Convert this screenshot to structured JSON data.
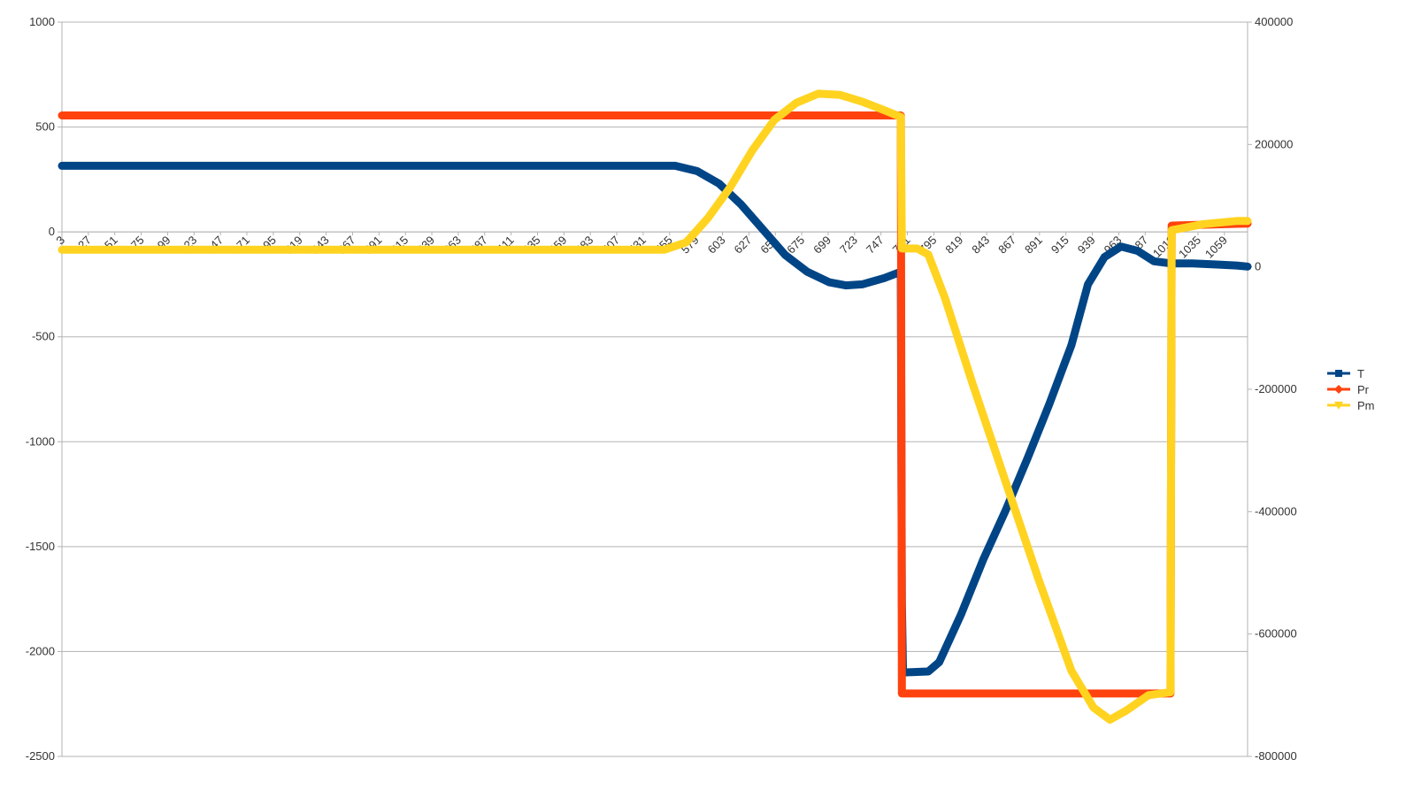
{
  "chart_data": {
    "type": "line",
    "title": "",
    "xlabel": "",
    "ylabel": "",
    "x_tick_labels": [
      "3",
      "27",
      "51",
      "75",
      "99",
      "123",
      "147",
      "171",
      "195",
      "219",
      "243",
      "267",
      "291",
      "315",
      "339",
      "363",
      "387",
      "411",
      "435",
      "459",
      "483",
      "507",
      "531",
      "555",
      "579",
      "603",
      "627",
      "651",
      "675",
      "699",
      "723",
      "747",
      "771",
      "795",
      "819",
      "843",
      "867",
      "891",
      "915",
      "939",
      "963",
      "987",
      "1011",
      "1035",
      "1059"
    ],
    "x_range": [
      3,
      1080
    ],
    "y_left": {
      "range": [
        -2500,
        1000
      ],
      "ticks": [
        1000,
        500,
        0,
        -500,
        -1000,
        -1500,
        -2000,
        -2500
      ],
      "tick_labels": [
        "1000",
        "500",
        "0",
        "-500",
        "-1000",
        "-1500",
        "-2000",
        "-2500"
      ]
    },
    "y_right": {
      "range": [
        -800000,
        400000
      ],
      "ticks": [
        400000,
        200000,
        0,
        -200000,
        -400000,
        -600000,
        -800000
      ],
      "tick_labels": [
        "400000",
        "200000",
        "0",
        "-200000",
        "-400000",
        "-600000",
        "-800000"
      ]
    },
    "grid": true,
    "legend_position": "right",
    "series": [
      {
        "name": "T",
        "axis": "left",
        "color": "#004586",
        "marker": "square",
        "points": [
          [
            3,
            315
          ],
          [
            550,
            315
          ],
          [
            560,
            315
          ],
          [
            580,
            290
          ],
          [
            600,
            230
          ],
          [
            620,
            130
          ],
          [
            640,
            10
          ],
          [
            660,
            -110
          ],
          [
            680,
            -190
          ],
          [
            700,
            -240
          ],
          [
            715,
            -255
          ],
          [
            730,
            -250
          ],
          [
            750,
            -220
          ],
          [
            765,
            -190
          ],
          [
            766,
            -1770
          ],
          [
            767,
            -2100
          ],
          [
            790,
            -2095
          ],
          [
            800,
            -2050
          ],
          [
            820,
            -1820
          ],
          [
            840,
            -1560
          ],
          [
            860,
            -1330
          ],
          [
            880,
            -1080
          ],
          [
            900,
            -820
          ],
          [
            920,
            -540
          ],
          [
            935,
            -250
          ],
          [
            950,
            -120
          ],
          [
            965,
            -70
          ],
          [
            980,
            -90
          ],
          [
            995,
            -140
          ],
          [
            1010,
            -150
          ],
          [
            1030,
            -150
          ],
          [
            1050,
            -155
          ],
          [
            1070,
            -160
          ],
          [
            1080,
            -165
          ]
        ]
      },
      {
        "name": "Pr",
        "axis": "left",
        "color": "#ff420e",
        "marker": "diamond",
        "points": [
          [
            3,
            555
          ],
          [
            765,
            555
          ],
          [
            766,
            -2200
          ],
          [
            1010,
            -2200
          ],
          [
            1011,
            30
          ],
          [
            1080,
            40
          ]
        ]
      },
      {
        "name": "Pm",
        "axis": "right",
        "color": "#ffd320",
        "marker": "triangle-down",
        "points": [
          [
            3,
            28000
          ],
          [
            550,
            28000
          ],
          [
            570,
            40000
          ],
          [
            590,
            80000
          ],
          [
            610,
            130000
          ],
          [
            630,
            190000
          ],
          [
            650,
            240000
          ],
          [
            670,
            268000
          ],
          [
            690,
            283000
          ],
          [
            710,
            281000
          ],
          [
            730,
            270000
          ],
          [
            750,
            256000
          ],
          [
            765,
            245000
          ],
          [
            766,
            30000
          ],
          [
            780,
            30000
          ],
          [
            790,
            20000
          ],
          [
            805,
            -50000
          ],
          [
            830,
            -190000
          ],
          [
            860,
            -350000
          ],
          [
            890,
            -510000
          ],
          [
            920,
            -660000
          ],
          [
            940,
            -720000
          ],
          [
            955,
            -740000
          ],
          [
            970,
            -725000
          ],
          [
            990,
            -700000
          ],
          [
            1010,
            -695000
          ],
          [
            1011,
            60000
          ],
          [
            1040,
            70000
          ],
          [
            1070,
            75000
          ],
          [
            1080,
            75000
          ]
        ]
      }
    ]
  }
}
